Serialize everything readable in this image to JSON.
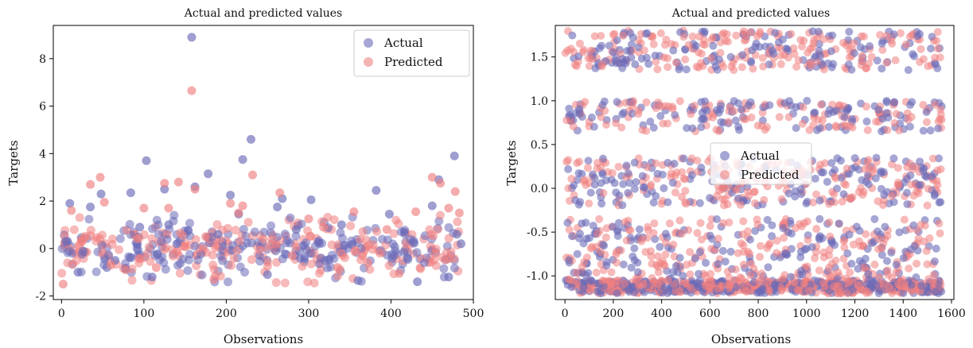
{
  "chart_data": [
    {
      "type": "scatter",
      "title": "Actual and predicted values",
      "xlabel": "Observations",
      "ylabel": "Targets",
      "xlim": [
        -10,
        500
      ],
      "ylim": [
        -2.15,
        9.4
      ],
      "xticks": [
        0,
        100,
        200,
        300,
        400,
        500
      ],
      "xtick_labels": [
        "0",
        "100",
        "200",
        "300",
        "400",
        "500"
      ],
      "yticks": [
        -2,
        0,
        2,
        4,
        6,
        8
      ],
      "ytick_labels": [
        "-2",
        "0",
        "2",
        "4",
        "6",
        "8"
      ],
      "legend_position": "top-right",
      "grid": false,
      "series": [
        {
          "name": "Actual",
          "color": "#6a6ab8",
          "points": [
            [
              5,
              0.3
            ],
            [
              10,
              1.9
            ],
            [
              20,
              -1.0
            ],
            [
              35,
              1.75
            ],
            [
              48,
              2.3
            ],
            [
              55,
              -0.8
            ],
            [
              65,
              -0.5
            ],
            [
              84,
              2.35
            ],
            [
              95,
              0.9
            ],
            [
              103,
              3.7
            ],
            [
              110,
              -1.2
            ],
            [
              125,
              2.5
            ],
            [
              130,
              1.0
            ],
            [
              140,
              0.2
            ],
            [
              158,
              8.9
            ],
            [
              162,
              2.6
            ],
            [
              178,
              3.15
            ],
            [
              190,
              0.6
            ],
            [
              205,
              2.25
            ],
            [
              215,
              1.45
            ],
            [
              220,
              3.75
            ],
            [
              230,
              4.6
            ],
            [
              250,
              -1.1
            ],
            [
              262,
              1.75
            ],
            [
              268,
              2.1
            ],
            [
              285,
              0.8
            ],
            [
              303,
              2.05
            ],
            [
              320,
              -0.5
            ],
            [
              340,
              1.0
            ],
            [
              360,
              -1.35
            ],
            [
              382,
              2.45
            ],
            [
              398,
              1.45
            ],
            [
              420,
              -0.4
            ],
            [
              432,
              -1.4
            ],
            [
              450,
              1.8
            ],
            [
              458,
              2.9
            ],
            [
              470,
              -1.2
            ],
            [
              477,
              3.9
            ],
            [
              480,
              0.6
            ],
            [
              485,
              0.2
            ]
          ]
        },
        {
          "name": "Predicted",
          "color": "#f08080",
          "points": [
            [
              2,
              -1.5
            ],
            [
              12,
              1.6
            ],
            [
              25,
              0.3
            ],
            [
              35,
              2.7
            ],
            [
              47,
              3.0
            ],
            [
              52,
              1.95
            ],
            [
              60,
              -0.7
            ],
            [
              78,
              -0.9
            ],
            [
              100,
              1.7
            ],
            [
              115,
              -0.8
            ],
            [
              125,
              2.75
            ],
            [
              130,
              1.7
            ],
            [
              142,
              2.8
            ],
            [
              158,
              6.65
            ],
            [
              162,
              2.5
            ],
            [
              175,
              0.5
            ],
            [
              185,
              -1.3
            ],
            [
              205,
              1.9
            ],
            [
              215,
              1.5
            ],
            [
              220,
              1.8
            ],
            [
              232,
              3.1
            ],
            [
              245,
              0.4
            ],
            [
              265,
              2.35
            ],
            [
              280,
              -0.3
            ],
            [
              300,
              1.25
            ],
            [
              318,
              0.9
            ],
            [
              335,
              -0.8
            ],
            [
              355,
              1.55
            ],
            [
              372,
              -0.6
            ],
            [
              395,
              0.8
            ],
            [
              410,
              -1.05
            ],
            [
              430,
              1.55
            ],
            [
              450,
              3.0
            ],
            [
              460,
              2.75
            ],
            [
              470,
              1.7
            ],
            [
              478,
              2.4
            ],
            [
              483,
              1.5
            ]
          ]
        }
      ]
    },
    {
      "type": "scatter",
      "title": "Actual and predicted values",
      "xlabel": "Observations",
      "ylabel": "Targets",
      "xlim": [
        -40,
        1610
      ],
      "ylim": [
        -1.27,
        1.86
      ],
      "xticks": [
        0,
        200,
        400,
        600,
        800,
        1000,
        1200,
        1400,
        1600
      ],
      "xtick_labels": [
        "0",
        "200",
        "400",
        "600",
        "800",
        "1000",
        "1200",
        "1400",
        "1600"
      ],
      "yticks": [
        -1.0,
        -0.5,
        0.0,
        0.5,
        1.0,
        1.5
      ],
      "ytick_labels": [
        "-1.0",
        "-0.5",
        "0.0",
        "0.5",
        "1.0",
        "1.5"
      ],
      "legend_position": "center",
      "grid": false,
      "series": [
        {
          "name": "Actual",
          "color": "#6a6ab8"
        },
        {
          "name": "Predicted",
          "color": "#f08080"
        }
      ]
    }
  ]
}
